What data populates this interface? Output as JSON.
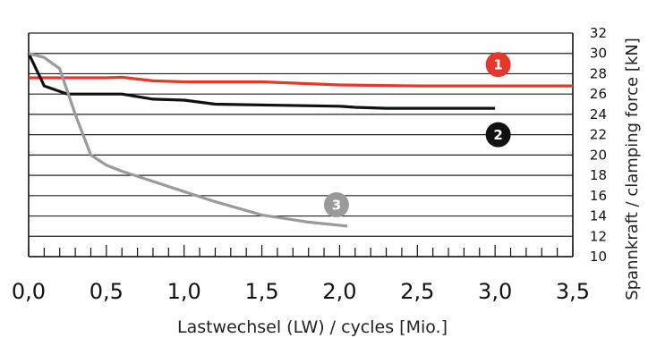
{
  "chart_data": {
    "type": "line",
    "xlabel": "Lastwechsel (LW) / cycles [Mio.]",
    "ylabel": "Spannkraft / clamping force [kN]",
    "xlim": [
      0,
      3.5
    ],
    "ylim": [
      10,
      32
    ],
    "x_ticks": [
      "0,0",
      "0,5",
      "1,0",
      "1,5",
      "2,0",
      "2,5",
      "3,0",
      "3,5"
    ],
    "y_ticks": [
      "10",
      "12",
      "14",
      "16",
      "18",
      "20",
      "22",
      "24",
      "26",
      "28",
      "30",
      "32"
    ],
    "grid": true,
    "series": [
      {
        "name": "1",
        "color": "#e3382c",
        "x": [
          0,
          0.2,
          0.5,
          0.6,
          0.8,
          1.0,
          1.5,
          2.0,
          2.5,
          3.0,
          3.5
        ],
        "y": [
          27.6,
          27.6,
          27.6,
          27.65,
          27.3,
          27.2,
          27.2,
          26.9,
          26.8,
          26.8,
          26.8
        ]
      },
      {
        "name": "2",
        "color": "#111111",
        "x": [
          0,
          0.1,
          0.25,
          0.6,
          0.8,
          1.0,
          1.2,
          1.6,
          2.0,
          2.1,
          2.3,
          3.0
        ],
        "y": [
          30.0,
          26.8,
          26.0,
          26.0,
          25.5,
          25.4,
          25.0,
          24.9,
          24.8,
          24.7,
          24.6,
          24.6
        ]
      },
      {
        "name": "3",
        "color": "#9a9a9a",
        "x": [
          0,
          0.1,
          0.2,
          0.3,
          0.4,
          0.5,
          0.6,
          0.8,
          1.0,
          1.2,
          1.5,
          1.8,
          2.05
        ],
        "y": [
          30.0,
          29.6,
          28.5,
          24.0,
          20.0,
          19.0,
          18.4,
          17.4,
          16.4,
          15.4,
          14.1,
          13.4,
          13.0
        ]
      }
    ],
    "annotations": [
      {
        "label": "1",
        "x": 3.02,
        "y": 28.9,
        "color": "#e3382c"
      },
      {
        "label": "2",
        "x": 3.02,
        "y": 22.0,
        "color": "#111111"
      },
      {
        "label": "3",
        "x": 1.98,
        "y": 15.1,
        "color": "#9a9a9a"
      }
    ]
  }
}
